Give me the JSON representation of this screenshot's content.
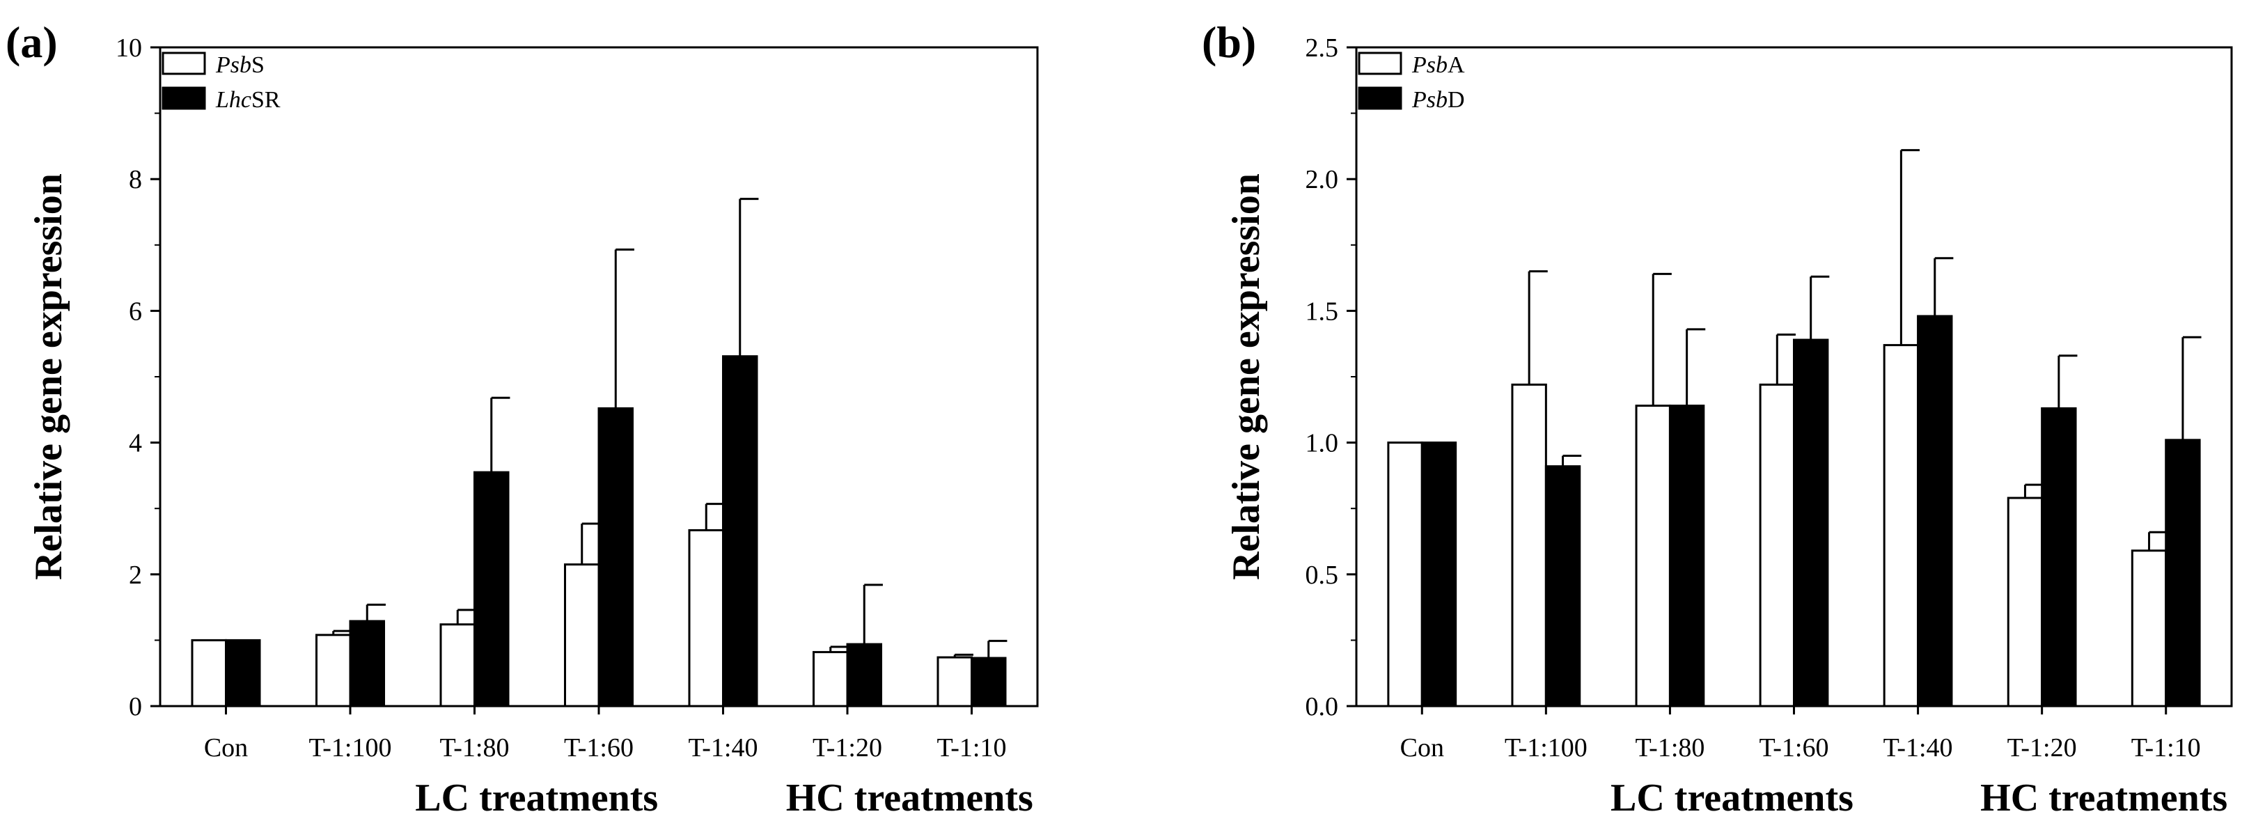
{
  "chart_data": [
    {
      "type": "bar",
      "panel_label": "(a)",
      "ylabel": "Relative gene expression",
      "xlabel": "",
      "ylim": [
        0,
        10
      ],
      "yticks": [
        "0",
        "2",
        "4",
        "6",
        "8",
        "10"
      ],
      "ytick_values": [
        0,
        2,
        4,
        6,
        8,
        10
      ],
      "categories": [
        "Con",
        "T-1:100",
        "T-1:80",
        "T-1:60",
        "T-1:40",
        "T-1:20",
        "T-1:10"
      ],
      "group_labels": [
        {
          "label": "LC treatments",
          "categories": [
            "T-1:100",
            "T-1:80",
            "T-1:60",
            "T-1:40"
          ]
        },
        {
          "label": "HC treatments",
          "categories": [
            "T-1:20",
            "T-1:10"
          ]
        }
      ],
      "legend_position": "top-left",
      "series": [
        {
          "name_italic": "Psb",
          "name_rest": "S",
          "fill": "#ffffff",
          "values": [
            1.0,
            1.08,
            1.24,
            2.15,
            2.67,
            0.82,
            0.74
          ],
          "errors": [
            0.0,
            0.06,
            0.22,
            0.62,
            0.4,
            0.08,
            0.04
          ]
        },
        {
          "name_italic": "Lhc",
          "name_rest": "SR",
          "fill": "#000000",
          "values": [
            1.0,
            1.29,
            3.55,
            4.52,
            5.31,
            0.94,
            0.73
          ],
          "errors": [
            0.0,
            0.25,
            1.13,
            2.41,
            2.39,
            0.9,
            0.26
          ]
        }
      ],
      "grid": false
    },
    {
      "type": "bar",
      "panel_label": "(b)",
      "ylabel": "Relative gene expression",
      "xlabel": "",
      "ylim": [
        0,
        2.5
      ],
      "yticks": [
        "0.0",
        "0.5",
        "1.0",
        "1.5",
        "2.0",
        "2.5"
      ],
      "ytick_values": [
        0,
        0.5,
        1.0,
        1.5,
        2.0,
        2.5
      ],
      "categories": [
        "Con",
        "T-1:100",
        "T-1:80",
        "T-1:60",
        "T-1:40",
        "T-1:20",
        "T-1:10"
      ],
      "group_labels": [
        {
          "label": "LC treatments",
          "categories": [
            "T-1:100",
            "T-1:80",
            "T-1:60",
            "T-1:40"
          ]
        },
        {
          "label": "HC treatments",
          "categories": [
            "T-1:20",
            "T-1:10"
          ]
        }
      ],
      "legend_position": "top-left",
      "series": [
        {
          "name_italic": "Psb",
          "name_rest": "A",
          "fill": "#ffffff",
          "values": [
            1.0,
            1.22,
            1.14,
            1.22,
            1.37,
            0.79,
            0.59
          ],
          "errors": [
            0.0,
            0.43,
            0.5,
            0.19,
            0.74,
            0.05,
            0.07
          ]
        },
        {
          "name_italic": "Psb",
          "name_rest": "D",
          "fill": "#000000",
          "values": [
            1.0,
            0.91,
            1.14,
            1.39,
            1.48,
            1.13,
            1.01
          ],
          "errors": [
            0.0,
            0.04,
            0.29,
            0.24,
            0.22,
            0.2,
            0.39
          ]
        }
      ],
      "grid": false
    }
  ]
}
